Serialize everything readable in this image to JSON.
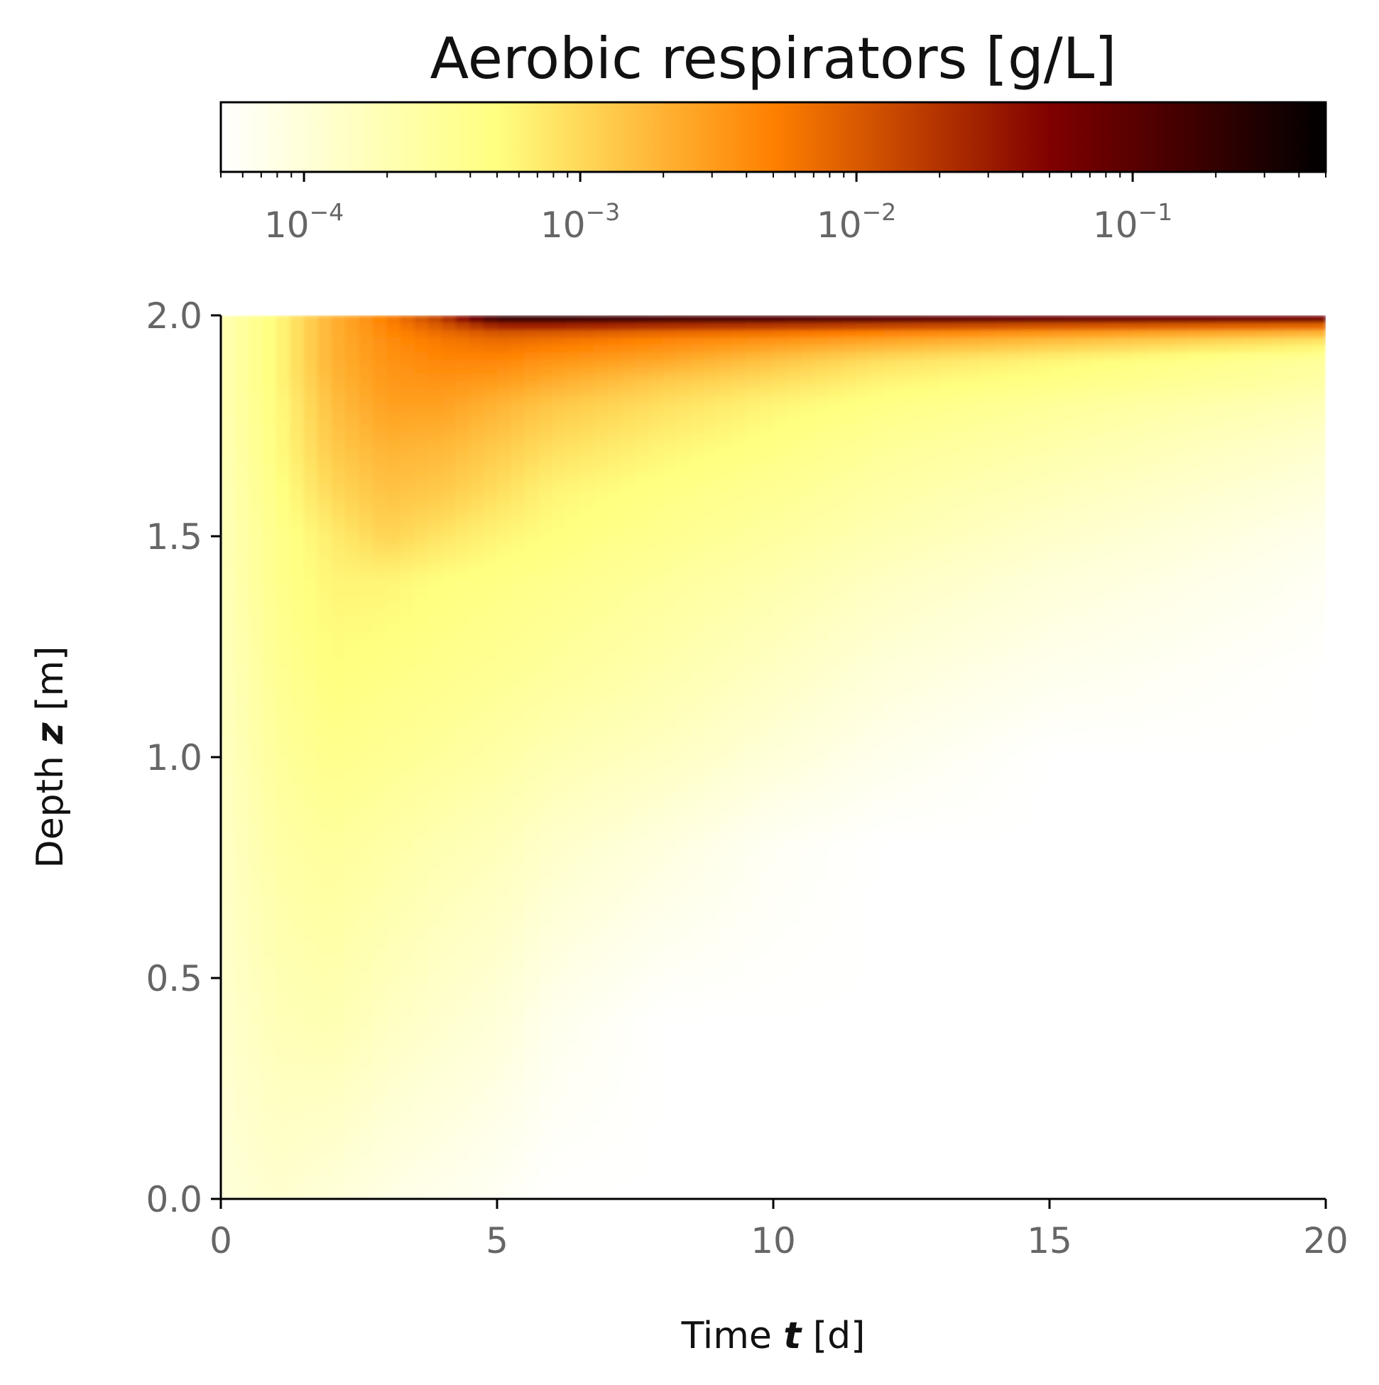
{
  "chart_data": {
    "type": "heatmap",
    "title": "Aerobic respirators [g/L]",
    "xlabel": {
      "prefix": "Time ",
      "symbol": "t",
      "unit": " [d]"
    },
    "ylabel": {
      "prefix": "Depth ",
      "symbol": "z",
      "unit": " [m]"
    },
    "xlim": [
      0,
      20
    ],
    "ylim": [
      0,
      2
    ],
    "x_ticks": [
      0,
      5,
      10,
      15,
      20
    ],
    "x_tick_labels": [
      "0",
      "5",
      "10",
      "15",
      "20"
    ],
    "y_ticks": [
      0,
      0.5,
      1.0,
      1.5,
      2.0
    ],
    "y_tick_labels": [
      "0.0",
      "0.5",
      "1.0",
      "1.5",
      "2.0"
    ],
    "colorbar": {
      "label": "Aerobic respirators [g/L]",
      "scale": "log",
      "orientation": "horizontal",
      "position": "top",
      "vmin": 5e-05,
      "vmax": 0.5,
      "ticks": [
        0.0001,
        0.001,
        0.01,
        0.1
      ],
      "tick_labels": [
        {
          "base": "10",
          "exp": "−4"
        },
        {
          "base": "10",
          "exp": "−3"
        },
        {
          "base": "10",
          "exp": "−2"
        },
        {
          "base": "10",
          "exp": "−1"
        }
      ],
      "colormap": "afmhot_r"
    },
    "grid": false,
    "z_grid": {
      "x": [
        0,
        1,
        2,
        3,
        4,
        5,
        6,
        8,
        10,
        12,
        15,
        20
      ],
      "y": [
        0.0,
        0.4,
        0.8,
        1.0,
        1.2,
        1.4,
        1.5,
        1.6,
        1.7,
        1.8,
        1.85,
        1.9,
        1.95,
        1.97,
        1.99,
        2.0
      ],
      "values": [
        [
          0.0001,
          0.00012,
          0.0001,
          8e-05,
          7e-05,
          6e-05,
          5e-05,
          5e-05,
          5e-05,
          5e-05,
          5e-05,
          5e-05
        ],
        [
          0.00012,
          0.00018,
          0.0002,
          0.00015,
          0.00012,
          0.0001,
          7e-05,
          5e-05,
          5e-05,
          5e-05,
          5e-05,
          5e-05
        ],
        [
          0.00014,
          0.00025,
          0.0003,
          0.00025,
          0.0002,
          0.00017,
          0.00013,
          9e-05,
          6e-05,
          5e-05,
          5e-05,
          5e-05
        ],
        [
          0.00015,
          0.0003,
          0.0004,
          0.00035,
          0.0003,
          0.00025,
          0.0002,
          0.00015,
          0.0001,
          7e-05,
          5e-05,
          5e-05
        ],
        [
          0.00016,
          0.00035,
          0.0005,
          0.00045,
          0.0004,
          0.00035,
          0.0003,
          0.00022,
          0.00015,
          0.0001,
          7e-05,
          5e-05
        ],
        [
          0.00017,
          0.0004,
          0.0006,
          0.0006,
          0.0005,
          0.00045,
          0.0004,
          0.0003,
          0.00022,
          0.00015,
          0.0001,
          6e-05
        ],
        [
          0.00018,
          0.0004,
          0.0007,
          0.0011,
          0.0008,
          0.0006,
          0.0005,
          0.00038,
          0.00028,
          0.0002,
          0.00013,
          7e-05
        ],
        [
          0.00018,
          0.00045,
          0.001,
          0.0015,
          0.0013,
          0.0009,
          0.0006,
          0.00045,
          0.00035,
          0.00025,
          0.00017,
          9e-05
        ],
        [
          0.00019,
          0.0005,
          0.0013,
          0.002,
          0.0018,
          0.0013,
          0.0009,
          0.0006,
          0.00045,
          0.00032,
          0.00023,
          0.00012
        ],
        [
          0.0002,
          0.0005,
          0.0016,
          0.0028,
          0.0028,
          0.002,
          0.0014,
          0.0009,
          0.0006,
          0.00045,
          0.00032,
          0.00018
        ],
        [
          0.0002,
          0.00055,
          0.0018,
          0.0032,
          0.0035,
          0.003,
          0.0022,
          0.0013,
          0.0009,
          0.0006,
          0.00045,
          0.00025
        ],
        [
          0.0002,
          0.00055,
          0.002,
          0.0035,
          0.0045,
          0.0045,
          0.0035,
          0.0025,
          0.0015,
          0.0009,
          0.0006,
          0.0003
        ],
        [
          0.0002,
          0.00055,
          0.002,
          0.004,
          0.006,
          0.008,
          0.007,
          0.005,
          0.004,
          0.003,
          0.002,
          0.001
        ],
        [
          0.0002,
          0.00055,
          0.002,
          0.0045,
          0.009,
          0.015,
          0.015,
          0.012,
          0.01,
          0.008,
          0.006,
          0.004
        ],
        [
          0.0002,
          0.00055,
          0.002,
          0.005,
          0.015,
          0.15,
          0.15,
          0.12,
          0.1,
          0.08,
          0.06,
          0.05
        ],
        [
          0.0002,
          0.00055,
          0.002,
          0.005,
          0.02,
          0.4,
          0.45,
          0.35,
          0.3,
          0.25,
          0.2,
          0.15
        ]
      ]
    }
  }
}
